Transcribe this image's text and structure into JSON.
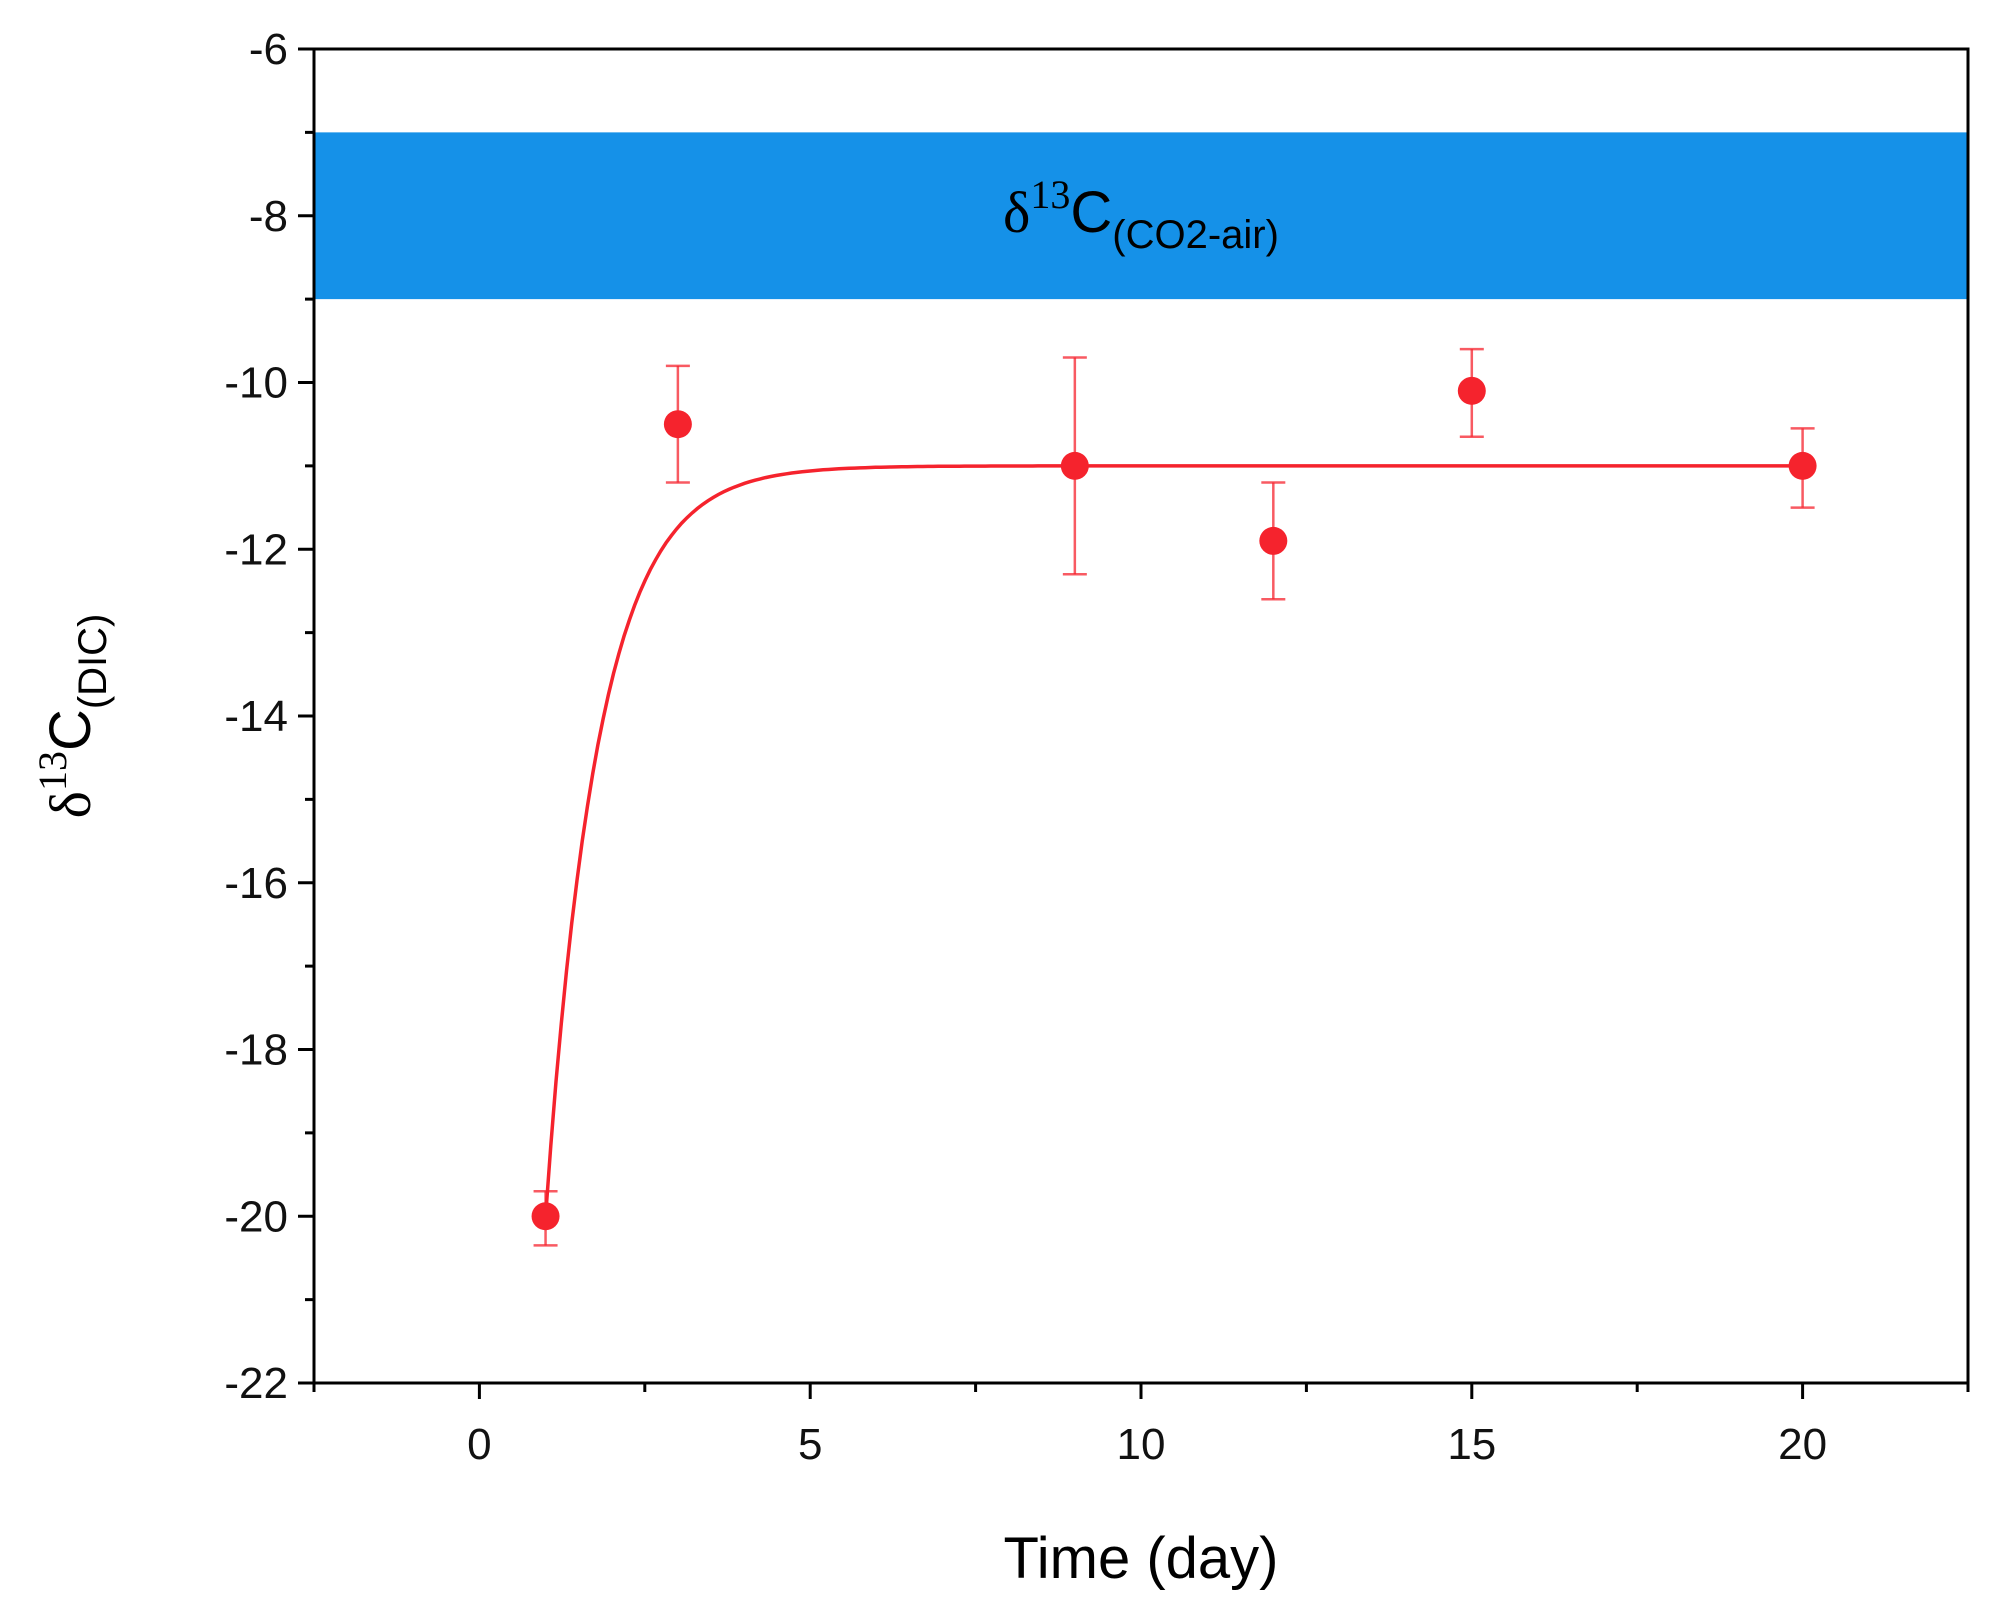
{
  "chart_data": {
    "type": "scatter",
    "xlabel": "Time (day)",
    "ylabel": {
      "delta": "δ",
      "superscript": "13",
      "base": "C",
      "subscript": "(DIC)"
    },
    "xlim": [
      -2.5,
      22.5
    ],
    "ylim": [
      -22,
      -6
    ],
    "x_ticks": [
      0,
      5,
      10,
      15,
      20
    ],
    "y_ticks": [
      -22,
      -20,
      -18,
      -16,
      -14,
      -12,
      -10,
      -8,
      -6
    ],
    "grid": false,
    "band": {
      "y_range": [
        -9,
        -7
      ],
      "color": "#1591e8",
      "label": {
        "delta": "δ",
        "superscript": "13",
        "base": "C",
        "subscript": "(CO2-air)"
      }
    },
    "series": [
      {
        "color": "#f5232d",
        "points": [
          {
            "x": 1,
            "y": -20.0,
            "err_low": -20.35,
            "err_high": -19.7
          },
          {
            "x": 3,
            "y": -10.5,
            "err_low": -11.2,
            "err_high": -9.8
          },
          {
            "x": 9,
            "y": -11.0,
            "err_low": -12.3,
            "err_high": -9.7
          },
          {
            "x": 12,
            "y": -11.9,
            "err_low": -12.6,
            "err_high": -11.2
          },
          {
            "x": 15,
            "y": -10.1,
            "err_low": -10.65,
            "err_high": -9.6
          },
          {
            "x": 20,
            "y": -11.0,
            "err_low": -11.5,
            "err_high": -10.55
          }
        ],
        "fit": {
          "type": "exponential",
          "x_range": [
            1,
            20
          ],
          "asymptote": -11.0,
          "start": -20.0,
          "rate": 1.25
        }
      }
    ]
  }
}
